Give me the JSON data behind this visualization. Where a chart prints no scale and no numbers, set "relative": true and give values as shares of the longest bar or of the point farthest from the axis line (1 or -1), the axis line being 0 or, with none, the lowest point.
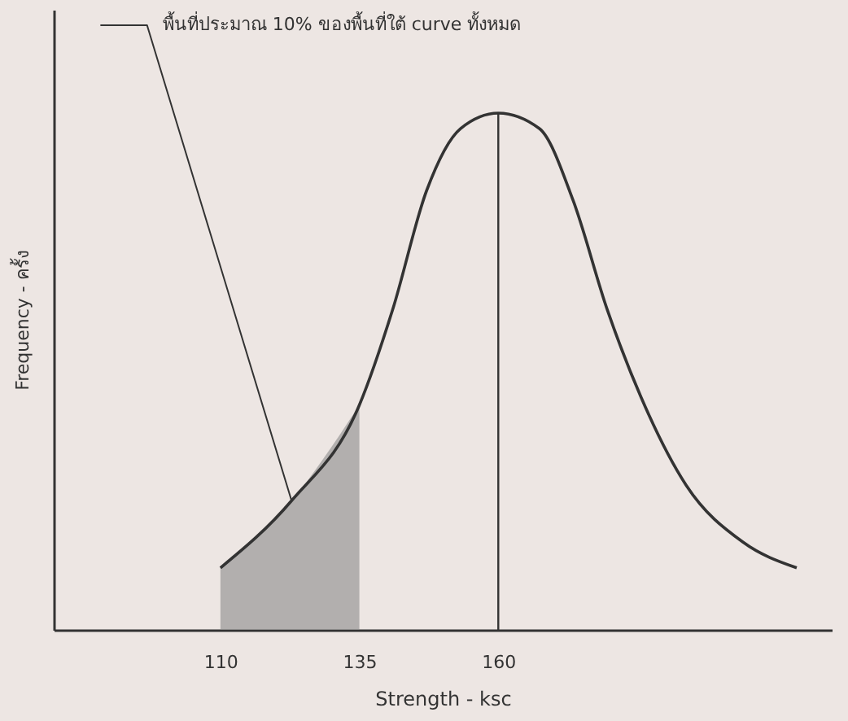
{
  "chart_data": {
    "type": "line",
    "relative": true,
    "xlabel": "Strength - ksc",
    "ylabel": "Frequency - ครั้ง",
    "xlim": [
      80,
      220
    ],
    "xticks": [
      110,
      135,
      160
    ],
    "tick_labels": "x",
    "grid": false,
    "marker": "none",
    "line_style": "solid",
    "series": [
      {
        "type": "line",
        "color": "#333333",
        "x": [
          110,
          122.8,
          135,
          141,
          147.1,
          153.2,
          160,
          167.4,
          173.5,
          179.6,
          185.7,
          193.8,
          204,
          213.7
        ],
        "values": [
          0.12,
          0.25,
          0.435,
          0.62,
          0.85,
          0.97,
          1.0,
          0.97,
          0.83,
          0.62,
          0.45,
          0.28,
          0.17,
          0.12
        ]
      },
      {
        "type": "area",
        "color": "#8a8a8a",
        "x": [
          110,
          122.8,
          135
        ],
        "values": [
          0.12,
          0.25,
          0.435
        ]
      }
    ],
    "ref_lines": [
      {
        "axis": "x",
        "value": 160,
        "color": "#333333"
      }
    ],
    "annotations": [
      {
        "text": "พื้นที่ประมาณ 10% ของพื้นที่ใต้ curve ทั้งหมด",
        "x": 122.8,
        "y": 0.25
      }
    ]
  }
}
